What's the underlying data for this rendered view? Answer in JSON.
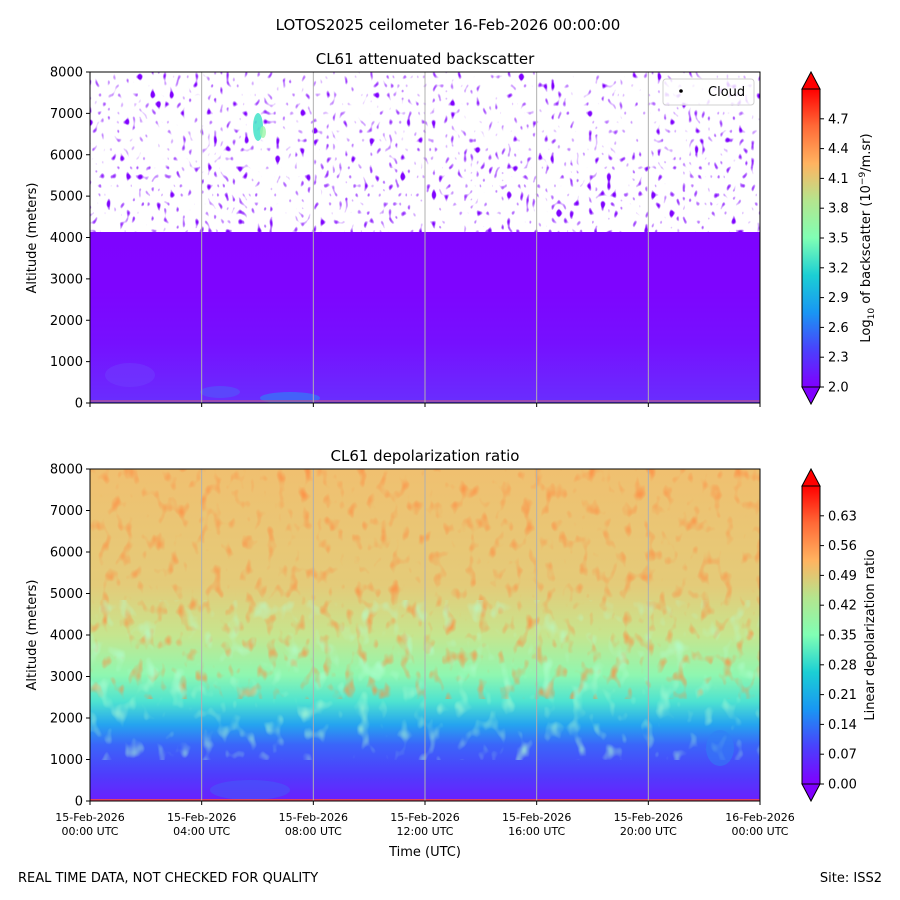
{
  "figure": {
    "suptitle": "LOTOS2025 ceilometer 16-Feb-2026 00:00:00",
    "footer_left": "REAL TIME DATA, NOT CHECKED FOR QUALITY",
    "footer_right": "Site: ISS2"
  },
  "chart_data": [
    {
      "type": "heatmap",
      "title": "CL61 attenuated backscatter",
      "xlabel": "",
      "ylabel": "Altitude (meters)",
      "ylim": [
        0,
        8000
      ],
      "xlim_hours": [
        0,
        24
      ],
      "y_ticks": [
        0,
        1000,
        2000,
        3000,
        4000,
        5000,
        6000,
        7000,
        8000
      ],
      "x_ticks": [
        {
          "date": "15-Feb-2026",
          "time": "00:00 UTC"
        },
        {
          "date": "15-Feb-2026",
          "time": "04:00 UTC"
        },
        {
          "date": "15-Feb-2026",
          "time": "08:00 UTC"
        },
        {
          "date": "15-Feb-2026",
          "time": "12:00 UTC"
        },
        {
          "date": "15-Feb-2026",
          "time": "16:00 UTC"
        },
        {
          "date": "15-Feb-2026",
          "time": "20:00 UTC"
        },
        {
          "date": "16-Feb-2026",
          "time": "00:00 UTC"
        }
      ],
      "x_tick_labels_shown": false,
      "grid": "vertical",
      "colormap": "rainbow",
      "colorbar": {
        "label_prefix": "Log",
        "label_sub": "10",
        "label_mid": " of backscatter (10",
        "label_sup": "−9",
        "label_suffix": "/m.sr)",
        "range": [
          2.0,
          5.0
        ],
        "ticks": [
          "2.0",
          "2.3",
          "2.6",
          "2.9",
          "3.2",
          "3.5",
          "3.8",
          "4.1",
          "4.4",
          "4.7"
        ],
        "extend": "both"
      },
      "legend": {
        "entries": [
          "Cloud"
        ],
        "placement": "top-right"
      },
      "field_description_levels": {
        "near_surface_0_300m": 2.2,
        "boundary_layer_300_1500m": 2.05,
        "free_troposphere_1500_4000m": 2.0,
        "noisy_above_4000m": "sparse values 2.0-2.1, missing above ~5000 m"
      }
    },
    {
      "type": "heatmap",
      "title": "CL61 depolarization ratio",
      "xlabel": "Time (UTC)",
      "ylabel": "Altitude (meters)",
      "ylim": [
        0,
        8000
      ],
      "xlim_hours": [
        0,
        24
      ],
      "y_ticks": [
        0,
        1000,
        2000,
        3000,
        4000,
        5000,
        6000,
        7000,
        8000
      ],
      "x_ticks": [
        {
          "date": "15-Feb-2026",
          "time": "00:00 UTC"
        },
        {
          "date": "15-Feb-2026",
          "time": "04:00 UTC"
        },
        {
          "date": "15-Feb-2026",
          "time": "08:00 UTC"
        },
        {
          "date": "15-Feb-2026",
          "time": "12:00 UTC"
        },
        {
          "date": "15-Feb-2026",
          "time": "16:00 UTC"
        },
        {
          "date": "15-Feb-2026",
          "time": "20:00 UTC"
        },
        {
          "date": "16-Feb-2026",
          "time": "00:00 UTC"
        }
      ],
      "x_tick_labels_shown": true,
      "grid": "vertical",
      "colormap": "rainbow",
      "colorbar": {
        "label": "Linear depolarization ratio",
        "range": [
          0.0,
          0.7
        ],
        "ticks": [
          "0.00",
          "0.07",
          "0.14",
          "0.21",
          "0.28",
          "0.35",
          "0.42",
          "0.49",
          "0.56",
          "0.63"
        ],
        "extend": "both"
      },
      "profile": [
        {
          "altitude": 0,
          "value": 0.04
        },
        {
          "altitude": 1000,
          "value": 0.08
        },
        {
          "altitude": 1800,
          "value": 0.18
        },
        {
          "altitude": 2500,
          "value": 0.3
        },
        {
          "altitude": 3500,
          "value": 0.4
        },
        {
          "altitude": 5000,
          "value": 0.45
        },
        {
          "altitude": 8000,
          "value": 0.46
        }
      ]
    }
  ]
}
